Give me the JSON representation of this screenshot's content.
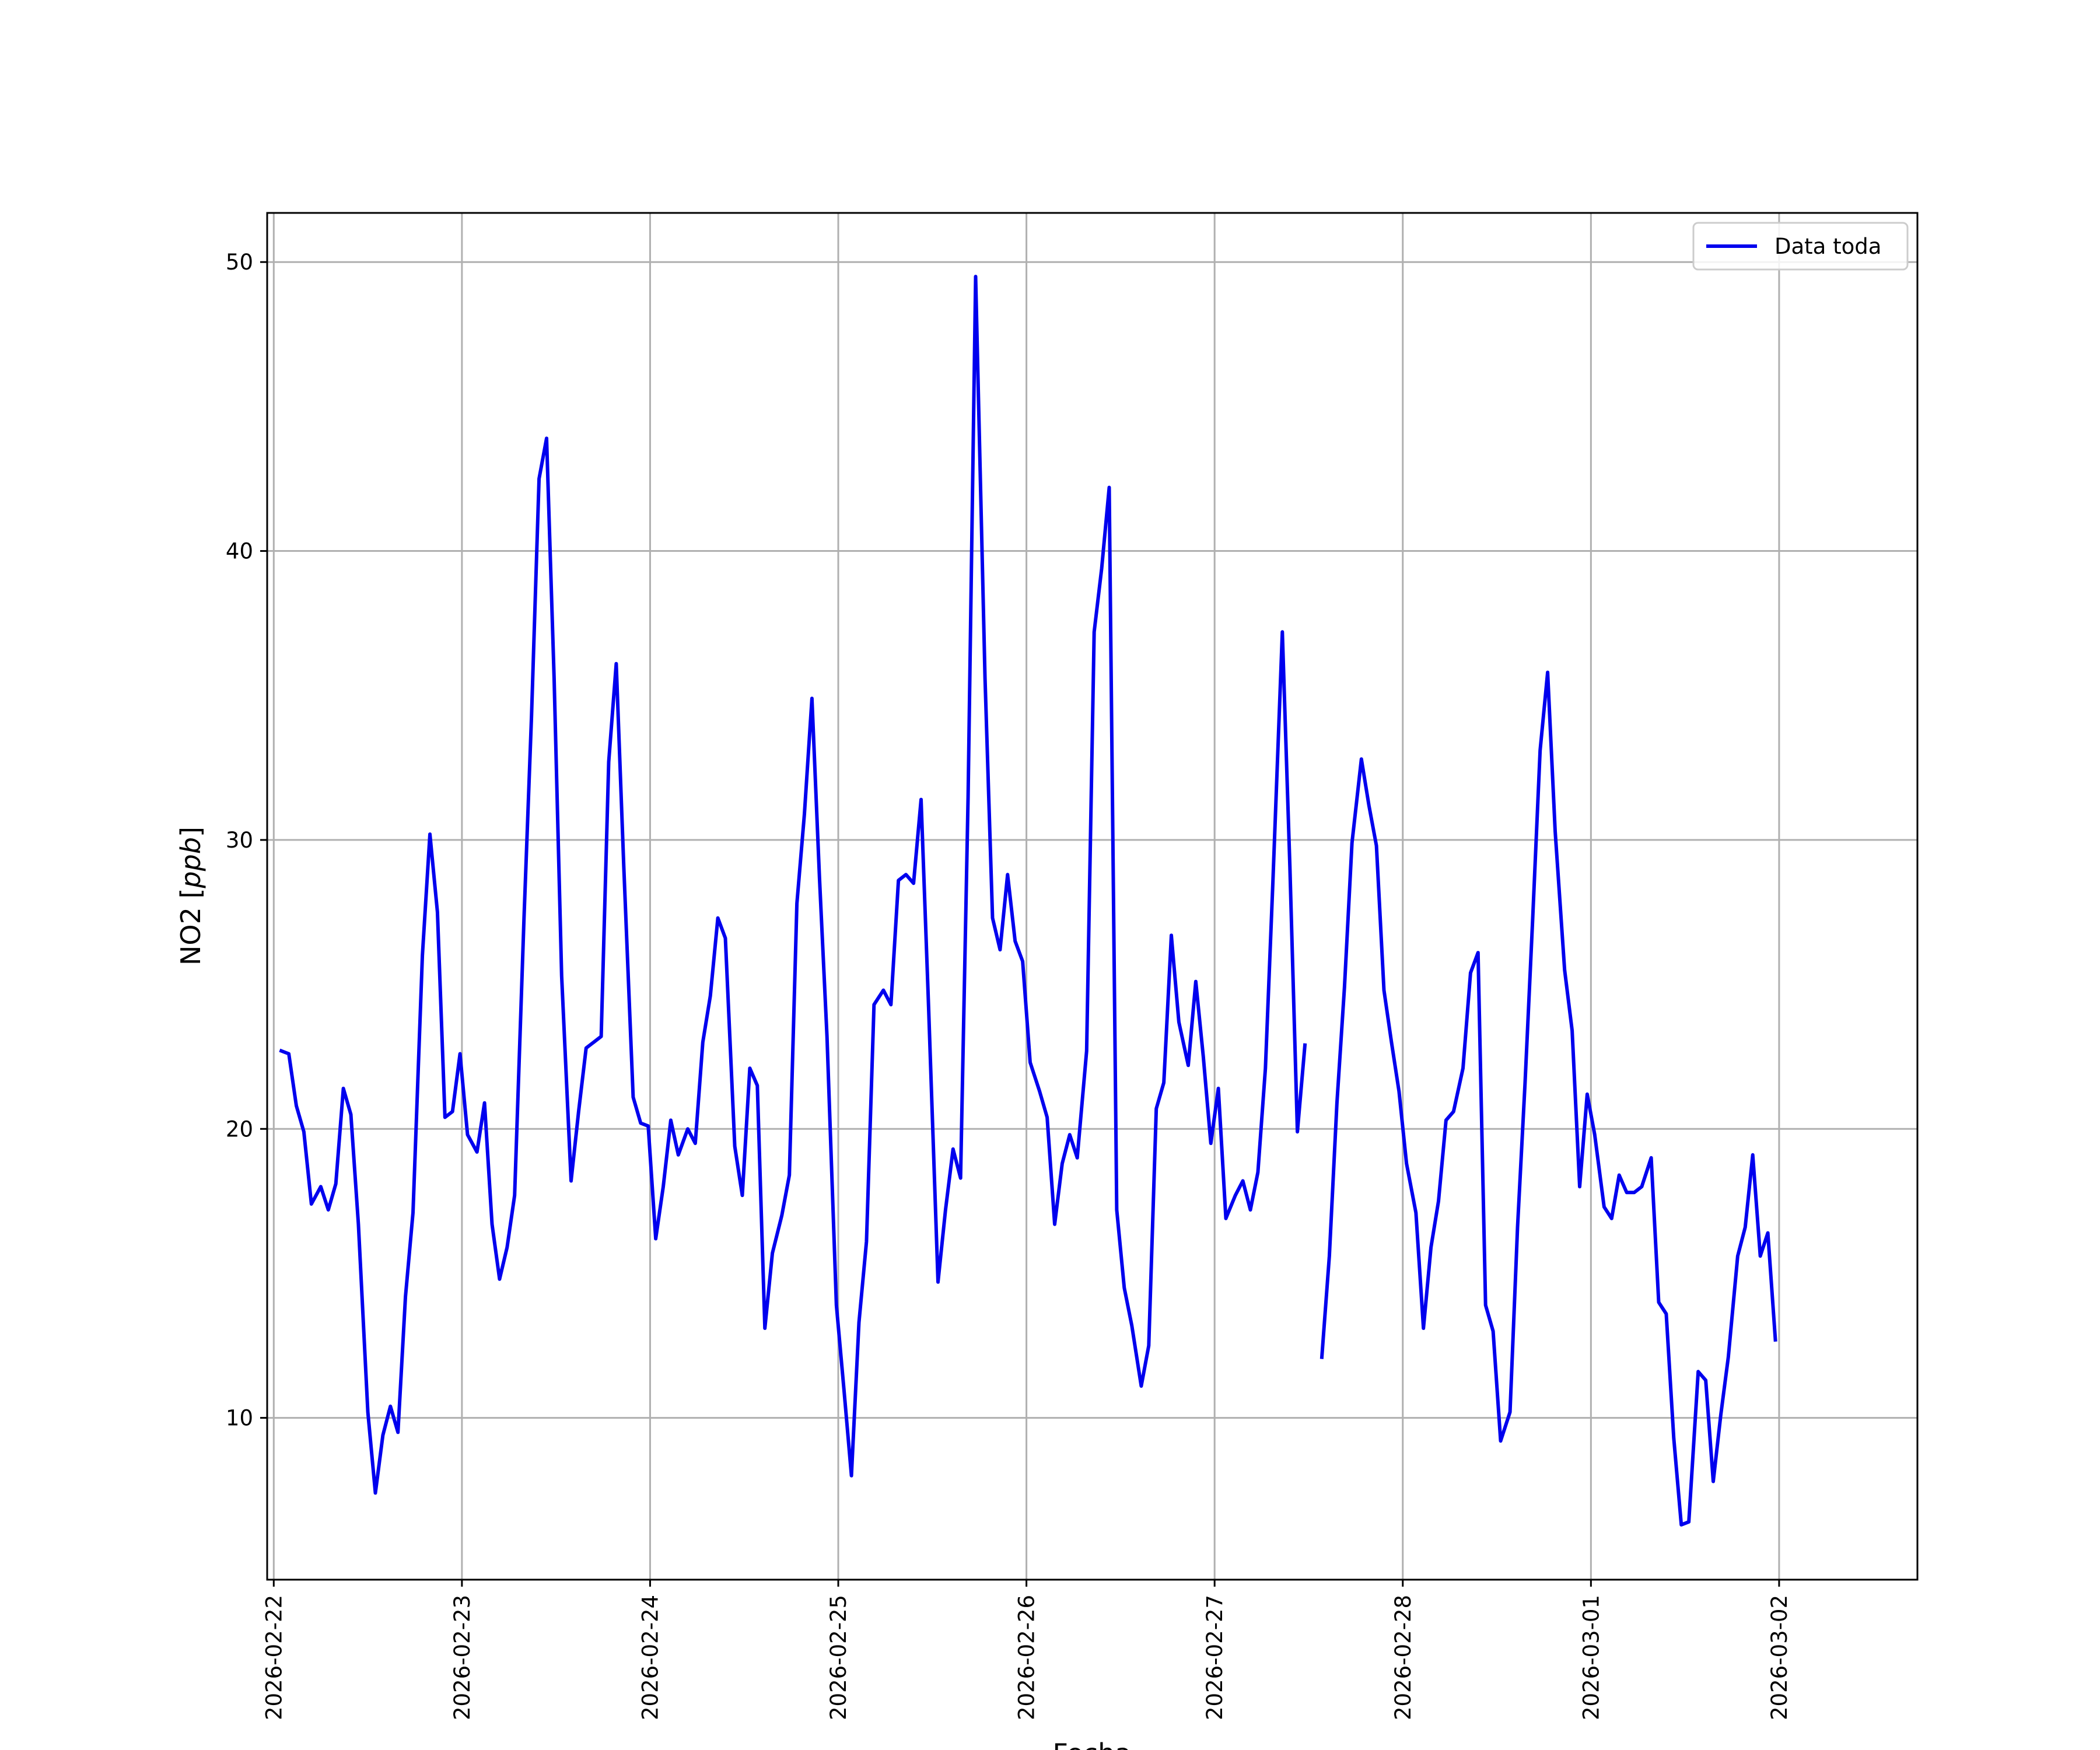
{
  "chart_data": {
    "type": "line",
    "title": "",
    "xlabel": "Fecha",
    "ylabel": "NO2 [ppb]",
    "ylabel_main": "NO2 [",
    "ylabel_unit": "ppb",
    "ylabel_close": "]",
    "xlim": [
      -0.035,
      8.735
    ],
    "ylim": [
      4.4,
      51.7
    ],
    "grid": true,
    "legend_position": "top-right",
    "colors": {
      "line": "#0000ee",
      "grid": "#b0b0b0",
      "axes": "#000000"
    },
    "x_ticks": [
      {
        "label": "2026-02-22",
        "value": 0
      },
      {
        "label": "2026-02-23",
        "value": 1
      },
      {
        "label": "2026-02-24",
        "value": 2
      },
      {
        "label": "2026-02-25",
        "value": 3
      },
      {
        "label": "2026-02-26",
        "value": 4
      },
      {
        "label": "2026-02-27",
        "value": 5
      },
      {
        "label": "2026-02-28",
        "value": 6
      },
      {
        "label": "2026-03-01",
        "value": 7
      },
      {
        "label": "2026-03-02",
        "value": 8
      }
    ],
    "y_ticks": [
      10,
      20,
      30,
      40,
      50
    ],
    "series": [
      {
        "name": "Data toda",
        "x_unit": "days from 2026-02-22",
        "points": [
          [
            0.04,
            22.7
          ],
          [
            0.08,
            22.6
          ],
          [
            0.12,
            20.8
          ],
          [
            0.16,
            19.9
          ],
          [
            0.2,
            17.4
          ],
          [
            0.25,
            18.0
          ],
          [
            0.29,
            17.2
          ],
          [
            0.33,
            18.1
          ],
          [
            0.37,
            21.4
          ],
          [
            0.41,
            20.5
          ],
          [
            0.45,
            16.7
          ],
          [
            0.5,
            10.2
          ],
          [
            0.54,
            7.4
          ],
          [
            0.58,
            9.4
          ],
          [
            0.62,
            10.4
          ],
          [
            0.66,
            9.5
          ],
          [
            0.7,
            14.2
          ],
          [
            0.74,
            17.1
          ],
          [
            0.79,
            26.0
          ],
          [
            0.83,
            30.2
          ],
          [
            0.87,
            27.5
          ],
          [
            0.91,
            20.4
          ],
          [
            0.95,
            20.6
          ],
          [
            0.99,
            22.6
          ],
          [
            1.03,
            19.8
          ],
          [
            1.08,
            19.2
          ],
          [
            1.12,
            20.9
          ],
          [
            1.16,
            16.7
          ],
          [
            1.2,
            14.8
          ],
          [
            1.24,
            15.9
          ],
          [
            1.28,
            17.7
          ],
          [
            1.33,
            27.3
          ],
          [
            1.37,
            34.3
          ],
          [
            1.41,
            42.5
          ],
          [
            1.45,
            43.9
          ],
          [
            1.49,
            35.6
          ],
          [
            1.53,
            25.3
          ],
          [
            1.58,
            18.2
          ],
          [
            1.62,
            20.6
          ],
          [
            1.66,
            22.8
          ],
          [
            1.7,
            23.0
          ],
          [
            1.74,
            23.2
          ],
          [
            1.78,
            32.7
          ],
          [
            1.82,
            36.1
          ],
          [
            1.86,
            29.1
          ],
          [
            1.91,
            21.1
          ],
          [
            1.95,
            20.2
          ],
          [
            1.99,
            20.1
          ],
          [
            2.03,
            16.2
          ],
          [
            2.07,
            18.0
          ],
          [
            2.11,
            20.3
          ],
          [
            2.15,
            19.1
          ],
          [
            2.2,
            20.0
          ],
          [
            2.24,
            19.5
          ],
          [
            2.28,
            23.0
          ],
          [
            2.32,
            24.6
          ],
          [
            2.36,
            27.3
          ],
          [
            2.4,
            26.6
          ],
          [
            2.45,
            19.4
          ],
          [
            2.49,
            17.7
          ],
          [
            2.53,
            22.1
          ],
          [
            2.57,
            21.5
          ],
          [
            2.61,
            13.1
          ],
          [
            2.65,
            15.7
          ],
          [
            2.7,
            17.0
          ],
          [
            2.74,
            18.4
          ],
          [
            2.78,
            27.8
          ],
          [
            2.82,
            30.9
          ],
          [
            2.86,
            34.9
          ],
          [
            2.9,
            28.7
          ],
          [
            2.94,
            23.2
          ],
          [
            2.99,
            13.9
          ],
          [
            3.03,
            11.0
          ],
          [
            3.07,
            8.0
          ],
          [
            3.11,
            13.3
          ],
          [
            3.15,
            16.1
          ],
          [
            3.19,
            24.3
          ],
          [
            3.24,
            24.8
          ],
          [
            3.28,
            24.3
          ],
          [
            3.32,
            28.6
          ],
          [
            3.36,
            28.8
          ],
          [
            3.4,
            28.5
          ],
          [
            3.44,
            31.4
          ],
          [
            3.48,
            24.2
          ],
          [
            3.53,
            14.7
          ],
          [
            3.57,
            17.2
          ],
          [
            3.61,
            19.3
          ],
          [
            3.65,
            18.3
          ],
          [
            3.69,
            31.5
          ],
          [
            3.73,
            49.5
          ],
          [
            3.78,
            35.6
          ],
          [
            3.82,
            27.3
          ],
          [
            3.86,
            26.2
          ],
          [
            3.9,
            28.8
          ],
          [
            3.94,
            26.5
          ],
          [
            3.98,
            25.8
          ],
          [
            4.02,
            22.3
          ],
          [
            4.07,
            21.3
          ],
          [
            4.11,
            20.4
          ],
          [
            4.15,
            16.7
          ],
          [
            4.19,
            18.8
          ],
          [
            4.23,
            19.8
          ],
          [
            4.27,
            19.0
          ],
          [
            4.32,
            22.7
          ],
          [
            4.36,
            37.2
          ],
          [
            4.4,
            39.4
          ],
          [
            4.44,
            42.2
          ],
          [
            4.48,
            17.2
          ],
          [
            4.52,
            14.5
          ],
          [
            4.56,
            13.2
          ],
          [
            4.61,
            11.1
          ],
          [
            4.65,
            12.5
          ],
          [
            4.69,
            20.7
          ],
          [
            4.73,
            21.6
          ],
          [
            4.77,
            26.7
          ],
          [
            4.81,
            23.7
          ],
          [
            4.86,
            22.2
          ],
          [
            4.9,
            25.1
          ],
          [
            4.94,
            22.5
          ],
          [
            4.98,
            19.5
          ],
          [
            5.02,
            21.4
          ],
          [
            5.06,
            16.9
          ],
          [
            5.11,
            17.7
          ],
          [
            5.15,
            18.2
          ],
          [
            5.19,
            17.2
          ],
          [
            5.23,
            18.5
          ],
          [
            5.27,
            22.1
          ],
          [
            5.31,
            28.6
          ],
          [
            5.36,
            37.2
          ],
          [
            5.4,
            29.1
          ],
          [
            5.44,
            19.9
          ],
          [
            5.48,
            22.9
          ],
          null,
          [
            5.57,
            12.1
          ],
          [
            5.61,
            15.6
          ],
          [
            5.65,
            20.9
          ],
          [
            5.69,
            24.9
          ],
          [
            5.73,
            29.9
          ],
          [
            5.78,
            32.8
          ],
          [
            5.82,
            31.2
          ],
          [
            5.86,
            29.8
          ],
          [
            5.9,
            24.8
          ],
          [
            5.94,
            23.0
          ],
          [
            5.98,
            21.3
          ],
          [
            6.02,
            18.8
          ],
          [
            6.07,
            17.1
          ],
          [
            6.11,
            13.1
          ],
          [
            6.15,
            15.9
          ],
          [
            6.19,
            17.5
          ],
          [
            6.23,
            20.3
          ],
          [
            6.27,
            20.6
          ],
          [
            6.32,
            22.1
          ],
          [
            6.36,
            25.4
          ],
          [
            6.4,
            26.1
          ],
          [
            6.44,
            13.9
          ],
          [
            6.48,
            13.0
          ],
          [
            6.52,
            9.2
          ],
          [
            6.57,
            10.2
          ],
          [
            6.61,
            16.6
          ],
          [
            6.65,
            21.6
          ],
          [
            6.69,
            27.2
          ],
          [
            6.73,
            33.1
          ],
          [
            6.77,
            35.8
          ],
          [
            6.81,
            30.3
          ],
          [
            6.86,
            25.5
          ],
          [
            6.9,
            23.4
          ],
          [
            6.94,
            18.0
          ],
          [
            6.98,
            21.2
          ],
          [
            7.02,
            19.8
          ],
          [
            7.07,
            17.3
          ],
          [
            7.11,
            16.9
          ],
          [
            7.15,
            18.4
          ],
          [
            7.19,
            17.8
          ],
          [
            7.23,
            17.8
          ],
          [
            7.27,
            18.0
          ],
          [
            7.32,
            19.0
          ],
          [
            7.36,
            14.0
          ],
          [
            7.4,
            13.6
          ],
          [
            7.44,
            9.3
          ],
          [
            7.48,
            6.3
          ],
          [
            7.52,
            6.4
          ],
          [
            7.57,
            11.6
          ],
          [
            7.61,
            11.3
          ],
          [
            7.65,
            7.8
          ],
          [
            7.69,
            10.1
          ],
          [
            7.73,
            12.1
          ],
          [
            7.78,
            15.6
          ],
          [
            7.82,
            16.6
          ],
          [
            7.86,
            19.1
          ],
          [
            7.9,
            15.6
          ],
          [
            7.94,
            16.4
          ],
          [
            7.98,
            12.7
          ]
        ]
      }
    ]
  }
}
